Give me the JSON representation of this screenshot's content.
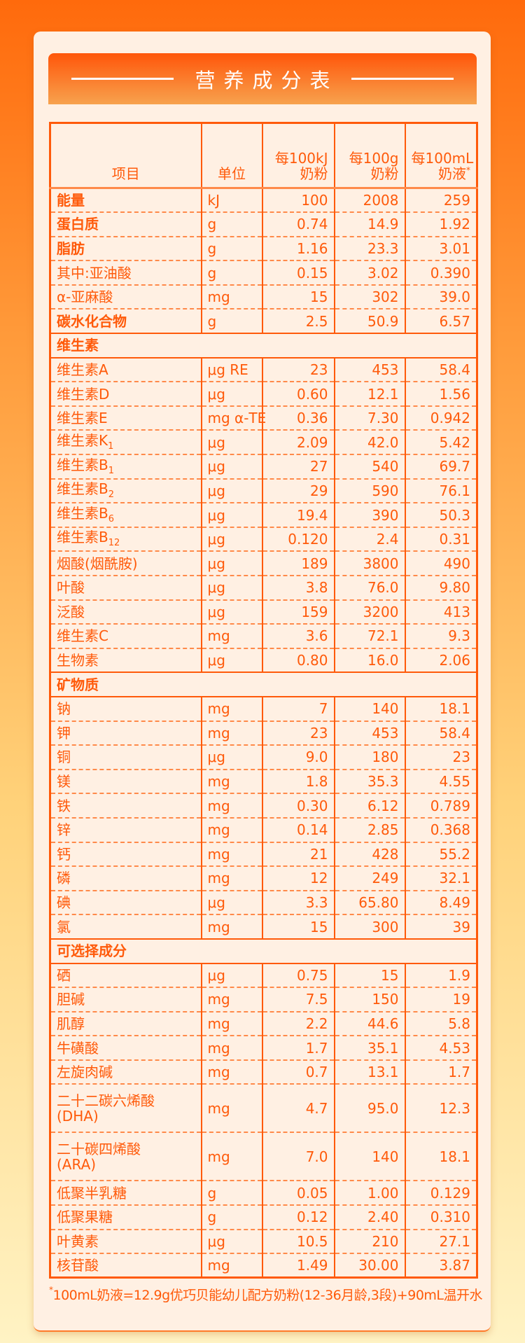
{
  "title": "营养成分表",
  "headers": {
    "item": "项目",
    "unit": "单位",
    "per_kj": "每100kJ 奶粉",
    "per_g": "每100g 奶粉",
    "per_ml": "每100mL 奶液",
    "per_ml_mark": "*"
  },
  "rows": [
    {
      "name": "能量",
      "unit": "kJ",
      "a": "100",
      "b": "2008",
      "c": "259",
      "bold": true
    },
    {
      "name": "蛋白质",
      "unit": "g",
      "a": "0.74",
      "b": "14.9",
      "c": "1.92",
      "bold": true
    },
    {
      "name": "脂肪",
      "unit": "g",
      "a": "1.16",
      "b": "23.3",
      "c": "3.01",
      "bold": true
    },
    {
      "name": "其中:亚油酸",
      "unit": "g",
      "a": "0.15",
      "b": "3.02",
      "c": "0.390"
    },
    {
      "name": "α-亚麻酸",
      "unit": "mg",
      "a": "15",
      "b": "302",
      "c": "39.0"
    },
    {
      "name": "碳水化合物",
      "unit": "g",
      "a": "2.5",
      "b": "50.9",
      "c": "6.57",
      "bold": true
    },
    {
      "section": "维生素"
    },
    {
      "name": "维生素A",
      "unit": "μg RE",
      "a": "23",
      "b": "453",
      "c": "58.4"
    },
    {
      "name": "维生素D",
      "unit": "μg",
      "a": "0.60",
      "b": "12.1",
      "c": "1.56"
    },
    {
      "name": "维生素E",
      "unit": "mg α-TE",
      "a": "0.36",
      "b": "7.30",
      "c": "0.942"
    },
    {
      "name": "维生素K",
      "sub": "1",
      "unit": "μg",
      "a": "2.09",
      "b": "42.0",
      "c": "5.42"
    },
    {
      "name": "维生素B",
      "sub": "1",
      "unit": "μg",
      "a": "27",
      "b": "540",
      "c": "69.7"
    },
    {
      "name": "维生素B",
      "sub": "2",
      "unit": "μg",
      "a": "29",
      "b": "590",
      "c": "76.1"
    },
    {
      "name": "维生素B",
      "sub": "6",
      "unit": "μg",
      "a": "19.4",
      "b": "390",
      "c": "50.3"
    },
    {
      "name": "维生素B",
      "sub": "12",
      "unit": "μg",
      "a": "0.120",
      "b": "2.4",
      "c": "0.31"
    },
    {
      "name": "烟酸(烟酰胺)",
      "unit": "μg",
      "a": "189",
      "b": "3800",
      "c": "490"
    },
    {
      "name": "叶酸",
      "unit": "μg",
      "a": "3.8",
      "b": "76.0",
      "c": "9.80"
    },
    {
      "name": "泛酸",
      "unit": "μg",
      "a": "159",
      "b": "3200",
      "c": "413"
    },
    {
      "name": "维生素C",
      "unit": "mg",
      "a": "3.6",
      "b": "72.1",
      "c": "9.3"
    },
    {
      "name": "生物素",
      "unit": "μg",
      "a": "0.80",
      "b": "16.0",
      "c": "2.06"
    },
    {
      "section": "矿物质"
    },
    {
      "name": "钠",
      "unit": "mg",
      "a": "7",
      "b": "140",
      "c": "18.1"
    },
    {
      "name": "钾",
      "unit": "mg",
      "a": "23",
      "b": "453",
      "c": "58.4"
    },
    {
      "name": "铜",
      "unit": "μg",
      "a": "9.0",
      "b": "180",
      "c": "23"
    },
    {
      "name": "镁",
      "unit": "mg",
      "a": "1.8",
      "b": "35.3",
      "c": "4.55"
    },
    {
      "name": "铁",
      "unit": "mg",
      "a": "0.30",
      "b": "6.12",
      "c": "0.789"
    },
    {
      "name": "锌",
      "unit": "mg",
      "a": "0.14",
      "b": "2.85",
      "c": "0.368"
    },
    {
      "name": "钙",
      "unit": "mg",
      "a": "21",
      "b": "428",
      "c": "55.2"
    },
    {
      "name": "磷",
      "unit": "mg",
      "a": "12",
      "b": "249",
      "c": "32.1"
    },
    {
      "name": "碘",
      "unit": "μg",
      "a": "3.3",
      "b": "65.80",
      "c": "8.49"
    },
    {
      "name": "氯",
      "unit": "mg",
      "a": "15",
      "b": "300",
      "c": "39"
    },
    {
      "section": "可选择成分"
    },
    {
      "name": "硒",
      "unit": "μg",
      "a": "0.75",
      "b": "15",
      "c": "1.9"
    },
    {
      "name": "胆碱",
      "unit": "mg",
      "a": "7.5",
      "b": "150",
      "c": "19"
    },
    {
      "name": "肌醇",
      "unit": "mg",
      "a": "2.2",
      "b": "44.6",
      "c": "5.8"
    },
    {
      "name": "牛磺酸",
      "unit": "mg",
      "a": "1.7",
      "b": "35.1",
      "c": "4.53"
    },
    {
      "name": "左旋肉碱",
      "unit": "mg",
      "a": "0.7",
      "b": "13.1",
      "c": "1.7"
    },
    {
      "name": "二十二碳六烯酸 (DHA)",
      "unit": "mg",
      "a": "4.7",
      "b": "95.0",
      "c": "12.3",
      "double": true
    },
    {
      "name": "二十碳四烯酸 (ARA)",
      "unit": "mg",
      "a": "7.0",
      "b": "140",
      "c": "18.1",
      "double": true
    },
    {
      "name": "低聚半乳糖",
      "unit": "g",
      "a": "0.05",
      "b": "1.00",
      "c": "0.129"
    },
    {
      "name": "低聚果糖",
      "unit": "g",
      "a": "0.12",
      "b": "2.40",
      "c": "0.310"
    },
    {
      "name": "叶黄素",
      "unit": "μg",
      "a": "10.5",
      "b": "210",
      "c": "27.1"
    },
    {
      "name": "核苷酸",
      "unit": "mg",
      "a": "1.49",
      "b": "30.00",
      "c": "3.87"
    }
  ],
  "footnote_mark": "*",
  "footnote": "100mL奶液=12.9g优巧贝能幼儿配方奶粉(12-36月龄,3段)+90mL温开水",
  "colors": {
    "accent": "#ff5a0a",
    "card_bg": "#fff0e3"
  }
}
